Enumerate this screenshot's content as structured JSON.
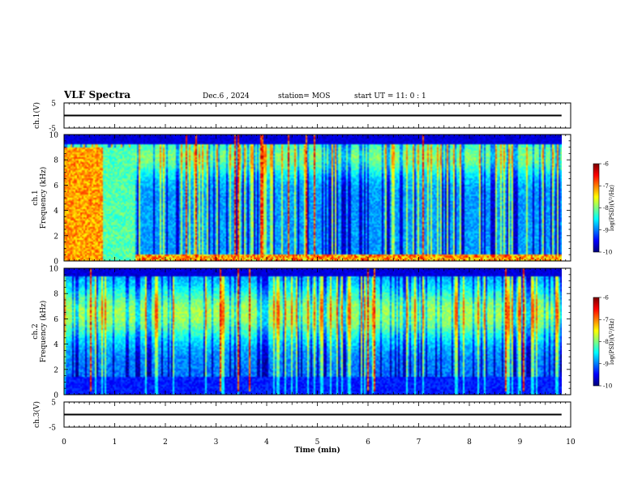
{
  "header": {
    "title": "VLF Spectra",
    "date": "Dec.6 , 2024",
    "station": "station= MOS",
    "start_ut": "start UT =  11: 0 : 1"
  },
  "chart_data": [
    {
      "type": "line",
      "id": "ch1-waveform",
      "ylabel": "ch.1(V)",
      "ylim": [
        -5,
        5
      ],
      "yticks": [
        "5",
        "-5"
      ],
      "xlim": [
        0,
        10
      ],
      "series": [
        {
          "x": [
            0,
            9.82
          ],
          "y": [
            0,
            0
          ]
        }
      ]
    },
    {
      "type": "heatmap",
      "id": "ch1-spectrogram",
      "ylabel": "ch.1\nFrequency (kHz)",
      "ylabel_lines": [
        "ch.1",
        "Frequency (kHz)"
      ],
      "ylim": [
        0,
        10
      ],
      "yticks": [
        "0",
        "2",
        "4",
        "6",
        "8",
        "10"
      ],
      "xlim": [
        0,
        10
      ],
      "data_end_min": 9.82,
      "colorbar": {
        "label": "log(PSD)(V²/Hz)",
        "range": [
          -10,
          -6
        ],
        "ticks": [
          "-6",
          "-7",
          "-8",
          "-9",
          "-10"
        ]
      }
    },
    {
      "type": "heatmap",
      "id": "ch2-spectrogram",
      "ylabel": "ch.2\nFrequency (kHz)",
      "ylabel_lines": [
        "ch.2",
        "Frequency (kHz)"
      ],
      "ylim": [
        0,
        10
      ],
      "yticks": [
        "0",
        "2",
        "4",
        "6",
        "8",
        "10"
      ],
      "xlim": [
        0,
        10
      ],
      "data_end_min": 9.82,
      "colorbar": {
        "label": "log(PSD)(V²/Hz)",
        "range": [
          -10,
          -6
        ],
        "ticks": [
          "-6",
          "-7",
          "-8",
          "-9",
          "-10"
        ]
      }
    },
    {
      "type": "line",
      "id": "ch3-waveform",
      "ylabel": "ch.3(V)",
      "ylim": [
        -5,
        5
      ],
      "yticks": [
        "5",
        "-5"
      ],
      "xlim": [
        0,
        10
      ],
      "xlabel": "Time (min)",
      "xticks": [
        "0",
        "1",
        "2",
        "3",
        "4",
        "5",
        "6",
        "7",
        "8",
        "9",
        "10"
      ],
      "series": [
        {
          "x": [
            0,
            9.82
          ],
          "y": [
            0,
            0
          ]
        }
      ]
    }
  ]
}
